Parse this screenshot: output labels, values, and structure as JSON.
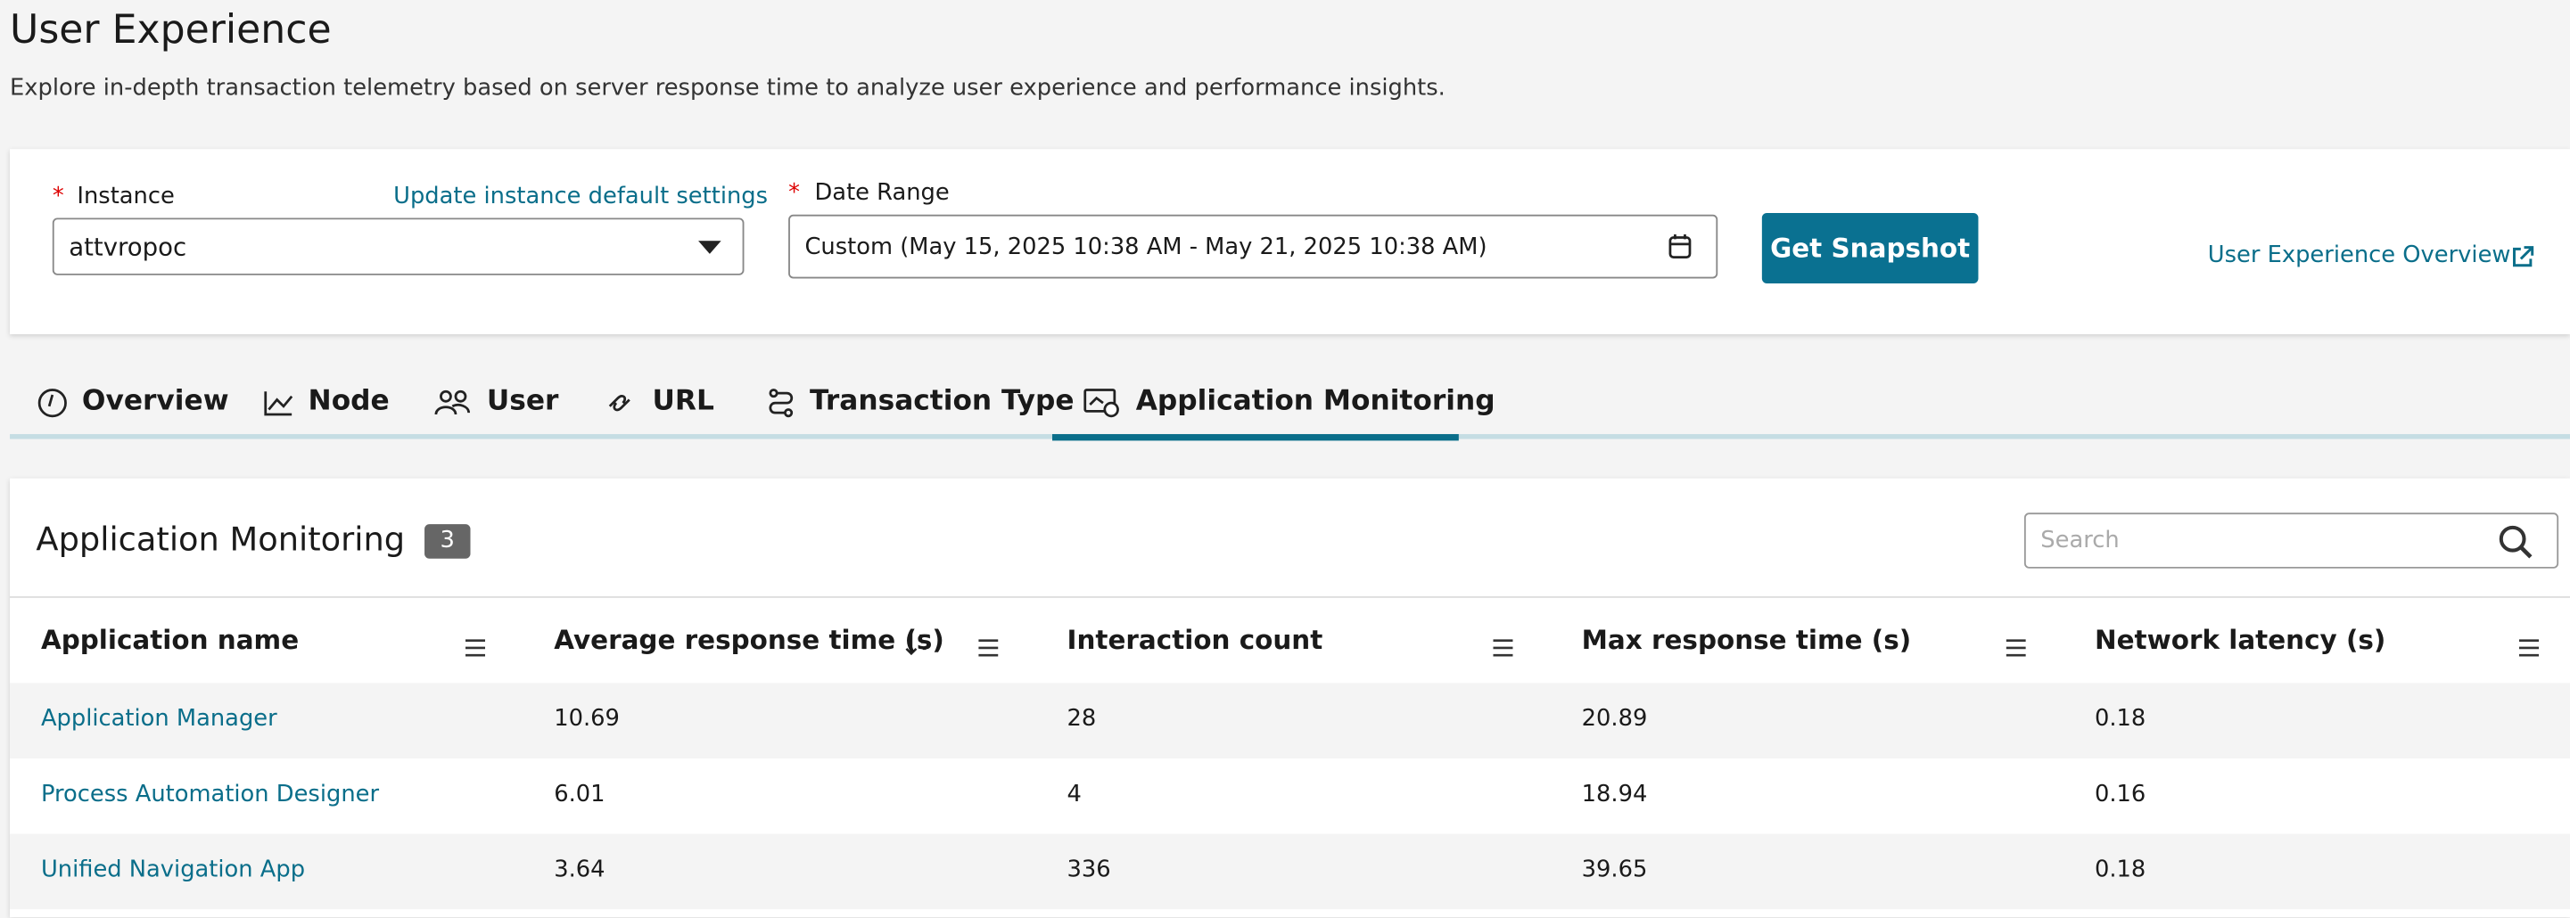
{
  "header": {
    "title": "User Experience",
    "subtitle": "Explore in-depth transaction telemetry based on server response time to analyze user experience and performance insights."
  },
  "filters": {
    "required_mark": "*",
    "instance_label": "Instance",
    "instance_link": "Update instance default settings",
    "instance_value": "attvropoc",
    "date_label": "Date Range",
    "date_value": "Custom (May 15, 2025 10:38 AM - May 21, 2025 10:38 AM)",
    "button": "Get Snapshot",
    "overview_link": "User Experience Overview"
  },
  "tabs": [
    "Overview",
    "Node",
    "User",
    "URL",
    "Transaction Type",
    "Application Monitoring"
  ],
  "table": {
    "title": "Application Monitoring",
    "count": 3,
    "search_placeholder": "Search",
    "columns": [
      "Application name",
      "Average response time (s)",
      "Interaction count",
      "Max response time (s)",
      "Network latency (s)"
    ],
    "rows": [
      [
        "Application Manager",
        10.69,
        28,
        20.89,
        0.18
      ],
      [
        "Process Automation Designer",
        6.01,
        4,
        18.94,
        0.16
      ],
      [
        "Unified Navigation App",
        3.64,
        336,
        39.65,
        0.18
      ]
    ]
  }
}
